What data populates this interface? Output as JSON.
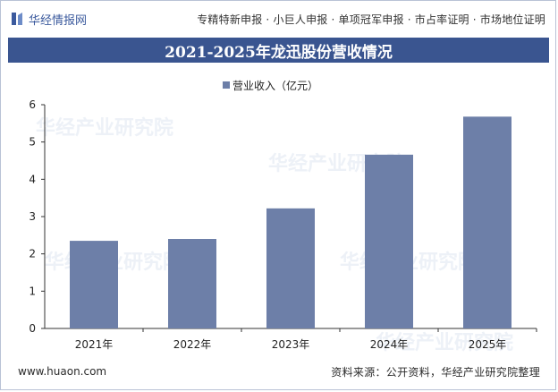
{
  "header": {
    "brand_name": "华经情报网",
    "services": "专精特新申报 · 小巨人申报 · 单项冠军申报 · 市占率证明 · 市场地位证明"
  },
  "footer": {
    "url": "www.huaon.com",
    "source": "资料来源：公开资料，华经产业研究院整理"
  },
  "watermark": "华经产业研究院",
  "colors": {
    "bar": "#6d7fa8",
    "title_band": "#3a5590",
    "brand": "#3b5a9d"
  },
  "chart_data": {
    "type": "bar",
    "title": "2021-2025年龙迅股份营收情况",
    "categories": [
      "2021年",
      "2022年",
      "2023年",
      "2024年",
      "2025年"
    ],
    "series": [
      {
        "name": "营业收入（亿元）",
        "values": [
          2.35,
          2.4,
          3.22,
          4.66,
          5.68
        ]
      }
    ],
    "ylim": [
      0,
      6
    ],
    "yticks": [
      "0",
      "1",
      "2",
      "3",
      "4",
      "5",
      "6"
    ],
    "grid": false,
    "legend_position": "top"
  }
}
